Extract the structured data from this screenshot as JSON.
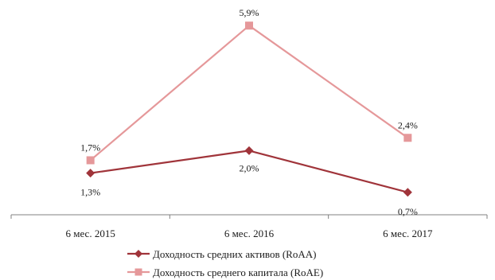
{
  "chart_data": {
    "type": "line",
    "title": "",
    "xlabel": "",
    "ylabel": "",
    "categories": [
      "6 мес. 2015",
      "6 мес. 2016",
      "6 мес. 2017"
    ],
    "ylim": [
      0,
      6.5
    ],
    "grid": false,
    "legend_position": "bottom",
    "series": [
      {
        "name": "Доходность средних активов (RoAA)",
        "values": [
          1.3,
          2.0,
          0.7
        ],
        "labels": [
          "1,3%",
          "2,0%",
          "0,7%"
        ],
        "color": "#a0343a",
        "marker": "diamond"
      },
      {
        "name": "Доходность среднего капитала (RoAE)",
        "values": [
          1.7,
          5.9,
          2.4
        ],
        "labels": [
          "1,7%",
          "5,9%",
          "2,4%"
        ],
        "color": "#e5989a",
        "marker": "square"
      }
    ]
  }
}
